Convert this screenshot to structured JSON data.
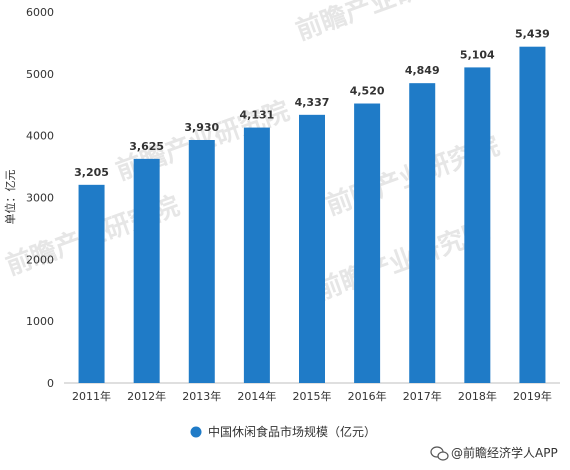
{
  "chart_data": {
    "type": "bar",
    "categories": [
      "2011年",
      "2012年",
      "2013年",
      "2014年",
      "2015年",
      "2016年",
      "2017年",
      "2018年",
      "2019年"
    ],
    "series": [
      {
        "name": "中国休闲食品市场规模（亿元）",
        "values": [
          3205,
          3625,
          3930,
          4131,
          4337,
          4520,
          4849,
          5104,
          5439
        ],
        "labels": [
          "3,205",
          "3,625",
          "3,930",
          "4,131",
          "4,337",
          "4,520",
          "4,849",
          "5,104",
          "5,439"
        ],
        "color": "#1f7bc7"
      }
    ],
    "ylabel": "单位：亿元",
    "ylim": [
      0,
      6000
    ],
    "yticks": [
      0,
      1000,
      2000,
      3000,
      4000,
      5000,
      6000
    ],
    "grid": false,
    "legend": "bottom-center"
  },
  "credit": {
    "text": "@前瞻经济学人APP",
    "icon": "wechat-icon"
  },
  "watermark": {
    "text": "前瞻产业研究院"
  }
}
